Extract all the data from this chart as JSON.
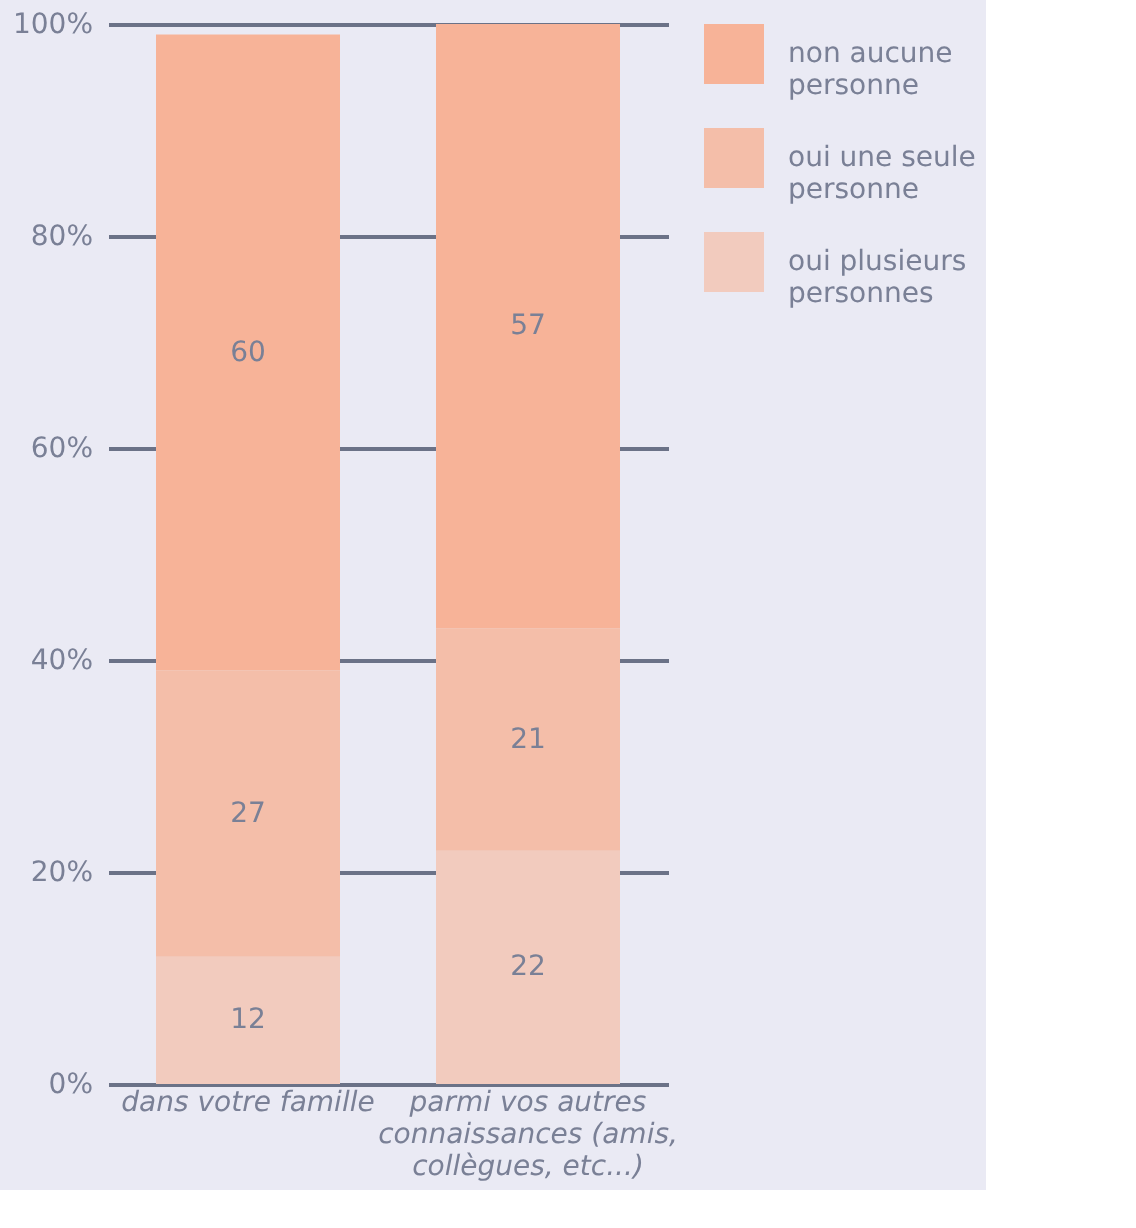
{
  "chart_data": {
    "type": "bar",
    "stacked": true,
    "categories": [
      "dans votre famille",
      "parmi vos autres connaissances (amis, collègues, etc...)"
    ],
    "series": [
      {
        "name": "oui plusieurs personnes",
        "color": "#f2cbbe",
        "values": [
          12,
          22
        ]
      },
      {
        "name": "oui une seule personne",
        "color": "#f4bea9",
        "values": [
          27,
          21
        ]
      },
      {
        "name": "non aucune personne",
        "color": "#f7b398",
        "values": [
          60,
          57
        ]
      }
    ],
    "ylim": [
      0,
      100
    ],
    "yticks": [
      {
        "value": 0,
        "label": "0%"
      },
      {
        "value": 20,
        "label": "20%"
      },
      {
        "value": 40,
        "label": "40%"
      },
      {
        "value": 60,
        "label": "60%"
      },
      {
        "value": 80,
        "label": "80%"
      },
      {
        "value": 100,
        "label": "100%"
      }
    ],
    "grid": "y",
    "legend": "right",
    "data_labels": true
  }
}
